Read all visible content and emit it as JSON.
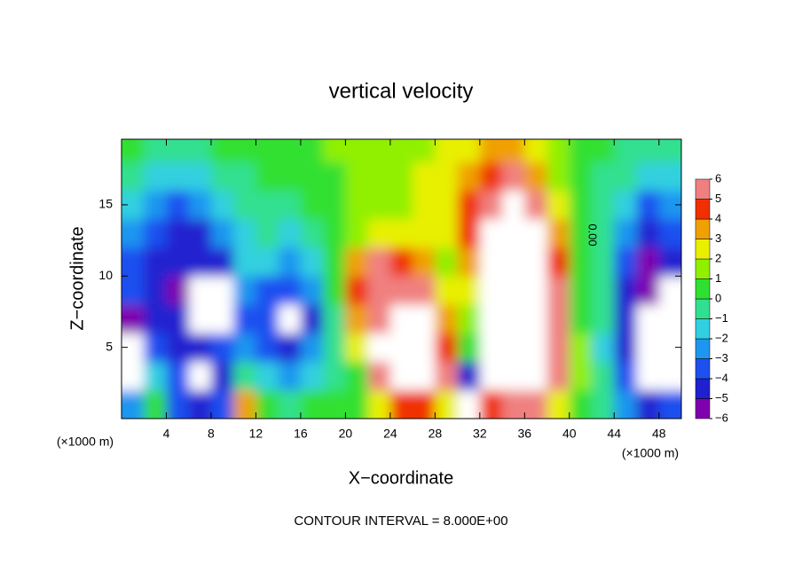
{
  "chart_data": {
    "type": "contour",
    "title": "vertical velocity",
    "xlabel": "X−coordinate",
    "ylabel": "Z−coordinate",
    "x_unit": "(×1000 m)",
    "note": "CONTOUR INTERVAL = 8.000E+00",
    "contour_label": "0.00",
    "xlim": [
      0,
      50
    ],
    "ylim": [
      0,
      19.6
    ],
    "xticks": [
      4,
      8,
      12,
      16,
      20,
      24,
      28,
      32,
      36,
      40,
      44,
      48
    ],
    "yticks": [
      5,
      10,
      15
    ],
    "x": [
      1,
      3,
      5,
      7,
      9,
      11,
      13,
      15,
      17,
      19,
      21,
      23,
      25,
      27,
      29,
      31,
      33,
      35,
      37,
      39,
      41,
      43,
      45,
      47,
      49
    ],
    "y": [
      1,
      3,
      5,
      7,
      9,
      11,
      13,
      15,
      17,
      19
    ],
    "values": [
      [
        -3,
        -7,
        -7,
        -6,
        -4,
        -4,
        -3,
        -2,
        -1,
        0
      ],
      [
        0,
        -2,
        -4,
        -5,
        -5,
        -5,
        -4,
        -2.5,
        -1.5,
        -0.5
      ],
      [
        -4,
        -4,
        -5,
        -5,
        -5.5,
        -5,
        -5,
        -4,
        -2,
        -1
      ],
      [
        -5,
        -7,
        -5,
        -7,
        -7,
        -5,
        -5,
        -3,
        -2,
        -0.5
      ],
      [
        -4,
        -5,
        -4,
        -7,
        -8,
        -5,
        -3,
        -2,
        -1,
        0
      ],
      [
        3,
        -1,
        -3,
        -4,
        -3,
        -2,
        -2,
        -1,
        -0.5,
        0
      ],
      [
        0.5,
        -2,
        -4,
        -4,
        -4,
        -2,
        -1,
        -0.5,
        0,
        0.5
      ],
      [
        -1,
        -3,
        -5,
        -6.5,
        -4,
        -3,
        -1.5,
        -0.5,
        0,
        0.5
      ],
      [
        0,
        -2,
        -3,
        -5,
        -3,
        -2,
        -1,
        0,
        0.5,
        0.5
      ],
      [
        0.5,
        -1,
        -1,
        -0.5,
        0.5,
        0.5,
        0,
        0.5,
        0.5,
        1
      ],
      [
        0.5,
        0.5,
        2,
        3,
        4,
        3,
        1.5,
        1,
        1,
        1
      ],
      [
        2,
        5,
        7,
        6,
        5.5,
        5,
        2.5,
        1.5,
        1,
        1
      ],
      [
        4,
        8,
        8,
        7,
        6,
        4,
        2,
        1.5,
        1.5,
        1
      ],
      [
        4,
        10,
        9,
        7,
        5,
        3,
        2,
        2,
        2,
        1.5
      ],
      [
        2,
        5,
        4,
        3,
        2,
        1.5,
        2,
        2.5,
        2.5,
        2
      ],
      [
        -7,
        -5,
        0.5,
        1.5,
        2,
        3,
        4,
        4,
        3.5,
        2.5
      ],
      [
        4,
        8,
        10,
        10,
        10,
        9,
        8,
        6,
        4.5,
        3
      ],
      [
        6,
        9,
        10,
        11,
        12,
        10,
        8,
        6.5,
        5,
        3
      ],
      [
        5,
        8,
        9,
        10,
        9,
        8,
        6.5,
        5,
        3.5,
        2
      ],
      [
        2,
        5,
        6,
        5.5,
        5,
        4,
        3,
        2,
        1.5,
        1
      ],
      [
        0.5,
        1,
        1,
        0.5,
        0.5,
        0.5,
        0.5,
        0.5,
        0.5,
        0.5
      ],
      [
        -0.5,
        -1,
        -1.5,
        -1,
        -1,
        -0.5,
        -1,
        -1,
        -0.5,
        0
      ],
      [
        -3,
        -4,
        -5,
        -5,
        -5,
        -4,
        -3,
        -2,
        -1,
        -0.5
      ],
      [
        -5,
        -7,
        -6.5,
        -7,
        -6,
        -6,
        -5,
        -3.5,
        -2,
        -1
      ],
      [
        -4,
        -7,
        -7,
        -8,
        -7,
        -5,
        -4,
        -3,
        -2,
        -1
      ]
    ],
    "colorbar": {
      "lim": [
        -6,
        6
      ],
      "ticks": [
        {
          "value": -6,
          "label": "−6"
        },
        {
          "value": -5,
          "label": "−5"
        },
        {
          "value": -4,
          "label": "−4"
        },
        {
          "value": -3,
          "label": "−3"
        },
        {
          "value": -2,
          "label": "−2"
        },
        {
          "value": -1,
          "label": "−1"
        },
        0,
        1,
        2,
        3,
        4,
        5,
        6
      ],
      "colors": [
        "#8000b0",
        "#2020d0",
        "#1e50f0",
        "#1e96f0",
        "#30d0e0",
        "#30e090",
        "#30e030",
        "#90f000",
        "#e8f000",
        "#f0a000",
        "#f03000",
        "#f08080"
      ],
      "out_of_range_color": "#ffffff"
    }
  }
}
